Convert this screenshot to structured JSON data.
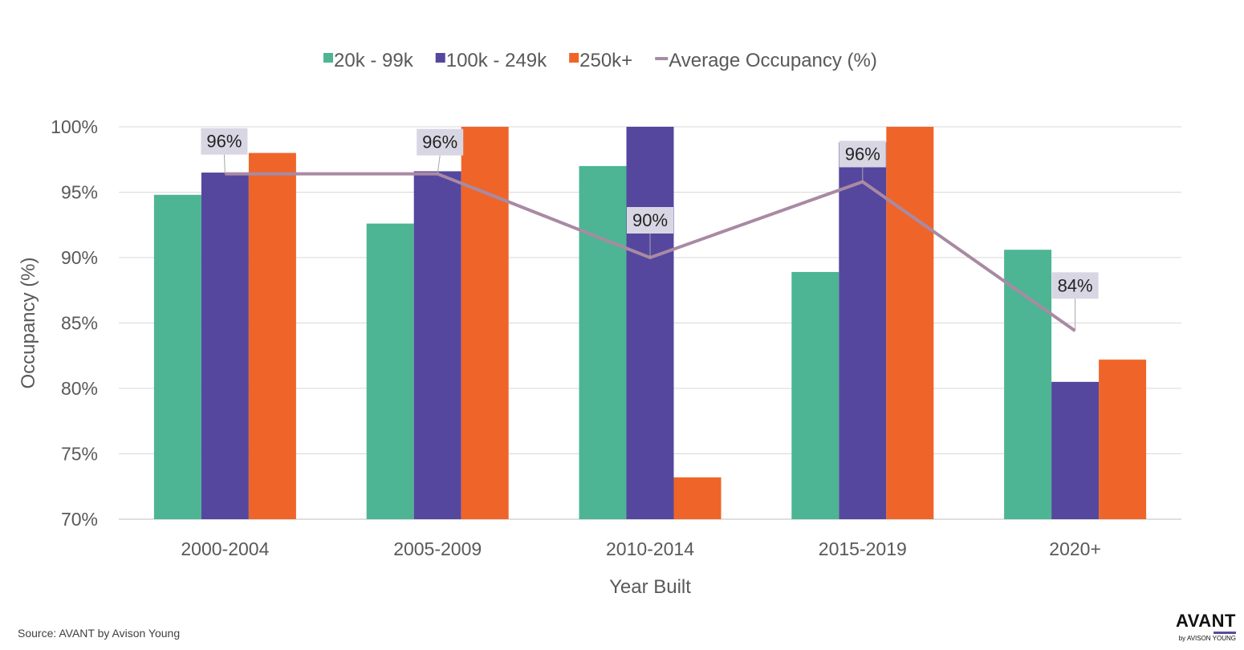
{
  "chart_data": {
    "type": "bar",
    "title": "",
    "xlabel": "Year Built",
    "ylabel": "Occupancy (%)",
    "ylim": [
      70,
      100
    ],
    "yticks": [
      70,
      75,
      80,
      85,
      90,
      95,
      100
    ],
    "ytick_labels": [
      "70%",
      "75%",
      "80%",
      "85%",
      "90%",
      "95%",
      "100%"
    ],
    "grid": true,
    "legend_position": "top",
    "categories": [
      "2000-2004",
      "2005-2009",
      "2010-2014",
      "2015-2019",
      "2020+"
    ],
    "series": [
      {
        "name": "20k - 99k",
        "color": "#4db594",
        "values": [
          94.8,
          92.6,
          97.0,
          88.9,
          90.6
        ]
      },
      {
        "name": "100k - 249k",
        "color": "#55479e",
        "values": [
          96.5,
          96.6,
          100,
          98.8,
          80.5
        ]
      },
      {
        "name": "250k+",
        "color": "#ef6529",
        "values": [
          98.0,
          100,
          73.2,
          100,
          82.2
        ]
      }
    ],
    "line_series": {
      "name": "Average Occupancy (%)",
      "color": "#a88aa3",
      "values": [
        96.4,
        96.4,
        90.0,
        95.8,
        84.4
      ],
      "data_labels": [
        "96%",
        "96%",
        "90%",
        "96%",
        "84%"
      ]
    }
  },
  "footer": {
    "source": "Source: AVANT by Avison Young",
    "logo_main": "AVANT",
    "logo_sub": "by AVISON YOUNG"
  }
}
